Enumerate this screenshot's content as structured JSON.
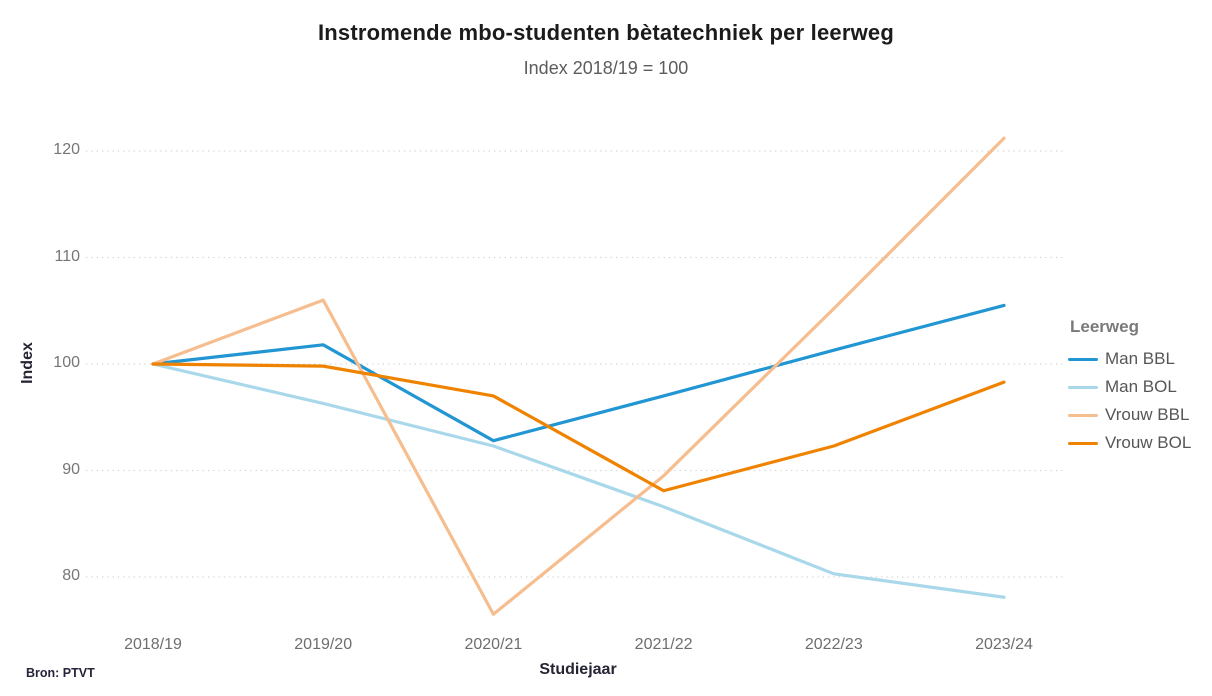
{
  "source": "Bron: PTVT",
  "chart_data": {
    "type": "line",
    "title": "Instromende mbo-studenten bètatechniek per leerweg",
    "subtitle": "Index 2018/19 = 100",
    "xlabel": "Studiejaar",
    "ylabel": "Index",
    "categories": [
      "2018/19",
      "2019/20",
      "2020/21",
      "2021/22",
      "2022/23",
      "2023/24"
    ],
    "yticks": [
      80,
      90,
      100,
      110,
      120
    ],
    "ylim": [
      74,
      124
    ],
    "grid": "horizontal dotted",
    "legend_title": "Leerweg",
    "legend_position": "right",
    "series": [
      {
        "name": "Man BBL",
        "color": "#2196d3",
        "values": [
          100,
          101.8,
          92.8,
          97.0,
          101.3,
          105.5
        ]
      },
      {
        "name": "Man BOL",
        "color": "#a9d8eb",
        "values": [
          100,
          96.3,
          92.3,
          86.6,
          80.3,
          78.1
        ]
      },
      {
        "name": "Vrouw BBL",
        "color": "#f6bd8e",
        "values": [
          100,
          106.0,
          76.5,
          89.5,
          105.2,
          121.2
        ]
      },
      {
        "name": "Vrouw BOL",
        "color": "#ef8300",
        "values": [
          100,
          99.8,
          97.0,
          88.1,
          92.3,
          98.3
        ]
      }
    ],
    "gridline_color": "#d4d4d4",
    "background_color": "#ffffff"
  }
}
